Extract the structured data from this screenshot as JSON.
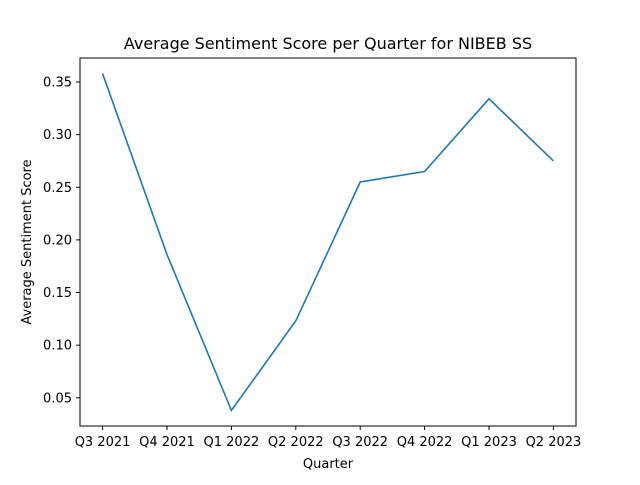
{
  "chart_data": {
    "type": "line",
    "title": "Average Sentiment Score per Quarter for NIBEB SS",
    "xlabel": "Quarter",
    "ylabel": "Average Sentiment Score",
    "categories": [
      "Q3 2021",
      "Q4 2021",
      "Q1 2022",
      "Q2 2022",
      "Q3 2022",
      "Q4 2022",
      "Q1 2023",
      "Q2 2023"
    ],
    "series": [
      {
        "values": [
          0.358,
          0.186,
          0.038,
          0.123,
          0.255,
          0.265,
          0.334,
          0.275
        ]
      }
    ],
    "ylim": [
      0.0232,
      0.3728
    ],
    "yticks": [
      0.05,
      0.1,
      0.15,
      0.2,
      0.25,
      0.3,
      0.35
    ],
    "ytick_labels": [
      "0.05",
      "0.10",
      "0.15",
      "0.20",
      "0.25",
      "0.30",
      "0.35"
    ],
    "grid": false,
    "line_color": "#1f77b4"
  }
}
